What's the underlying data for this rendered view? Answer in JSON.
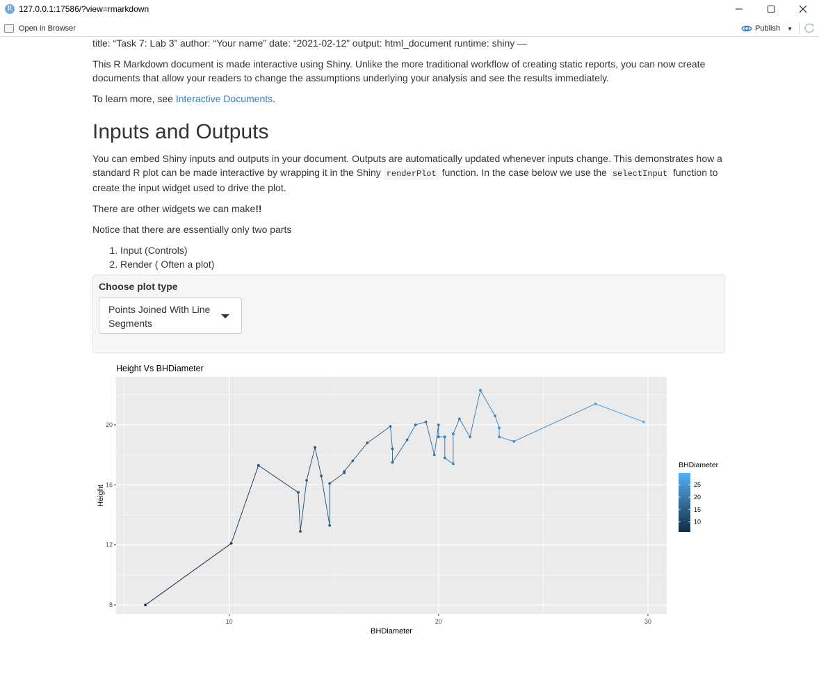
{
  "window": {
    "title": "127.0.0.1:17586/?view=rmarkdown",
    "app_icon_letter": "R",
    "minimize_icon": "minimize-icon",
    "maximize_icon": "maximize-icon",
    "close_icon": "close-icon"
  },
  "toolbar": {
    "open_in_browser": "Open in Browser",
    "publish": "Publish"
  },
  "doc": {
    "yaml_line": "title: “Task 7: Lab 3” author: “Your name” date: “2021-02-12” output: html_document runtime: shiny —",
    "intro": "This R Markdown document is made interactive using Shiny. Unlike the more traditional workflow of creating static reports, you can now create documents that allow your readers to change the assumptions underlying your analysis and see the results immediately.",
    "learn_more_prefix": "To learn more, see ",
    "learn_more_link": "Interactive Documents",
    "learn_more_suffix": ".",
    "heading": "Inputs and Outputs",
    "embed_p1": "You can embed Shiny inputs and outputs in your document. Outputs are automatically updated whenever inputs change. This demonstrates how a standard R plot can be made interactive by wrapping it in the Shiny ",
    "embed_code1": "renderPlot",
    "embed_p2": " function. In the case below we use the ",
    "embed_code2": "selectInput",
    "embed_p3": " function to create the input widget used to drive the plot.",
    "widgets_text": "There are other widgets we can make",
    "widgets_bang": "!!",
    "notice": "Notice that there are essentially only two parts",
    "parts": [
      "Input (Controls)",
      "Render ( Often a plot)"
    ]
  },
  "control": {
    "label": "Choose plot type",
    "selected": "Points Joined With Line Segments"
  },
  "chart_data": {
    "type": "line",
    "title": "Height Vs BHDiameter",
    "xlabel": "BHDiameter",
    "ylabel": "Height",
    "xlim": [
      4.6,
      30.9
    ],
    "ylim": [
      7.4,
      23.2
    ],
    "xticks": [
      10,
      20,
      30
    ],
    "yticks": [
      8,
      12,
      16,
      20
    ],
    "grid": true,
    "legend": {
      "title": "BHDiameter",
      "placement": "right",
      "ticks": [
        10,
        15,
        20,
        25
      ],
      "range": [
        6,
        29.8
      ],
      "color_low": "#132B43",
      "color_high": "#56B1F7"
    },
    "points": [
      {
        "x": 6.0,
        "y": 8.0
      },
      {
        "x": 10.1,
        "y": 12.1
      },
      {
        "x": 11.4,
        "y": 17.3
      },
      {
        "x": 13.3,
        "y": 15.5
      },
      {
        "x": 13.4,
        "y": 12.9
      },
      {
        "x": 13.7,
        "y": 16.3
      },
      {
        "x": 14.1,
        "y": 18.5
      },
      {
        "x": 14.4,
        "y": 16.6
      },
      {
        "x": 14.8,
        "y": 13.3
      },
      {
        "x": 14.8,
        "y": 16.1
      },
      {
        "x": 15.5,
        "y": 16.8
      },
      {
        "x": 15.5,
        "y": 16.9
      },
      {
        "x": 15.9,
        "y": 17.6
      },
      {
        "x": 16.6,
        "y": 18.8
      },
      {
        "x": 17.7,
        "y": 19.9
      },
      {
        "x": 17.8,
        "y": 18.4
      },
      {
        "x": 17.8,
        "y": 17.5
      },
      {
        "x": 18.5,
        "y": 19.0
      },
      {
        "x": 18.9,
        "y": 20.0
      },
      {
        "x": 19.4,
        "y": 20.2
      },
      {
        "x": 19.8,
        "y": 18.0
      },
      {
        "x": 20.0,
        "y": 20.0
      },
      {
        "x": 20.0,
        "y": 19.2
      },
      {
        "x": 20.3,
        "y": 19.2
      },
      {
        "x": 20.3,
        "y": 17.8
      },
      {
        "x": 20.7,
        "y": 17.4
      },
      {
        "x": 20.7,
        "y": 19.4
      },
      {
        "x": 21.0,
        "y": 20.4
      },
      {
        "x": 21.5,
        "y": 19.2
      },
      {
        "x": 22.0,
        "y": 22.3
      },
      {
        "x": 22.7,
        "y": 20.6
      },
      {
        "x": 22.9,
        "y": 19.8
      },
      {
        "x": 22.9,
        "y": 19.2
      },
      {
        "x": 23.6,
        "y": 18.9
      },
      {
        "x": 27.5,
        "y": 21.4
      },
      {
        "x": 29.8,
        "y": 20.2
      }
    ]
  }
}
